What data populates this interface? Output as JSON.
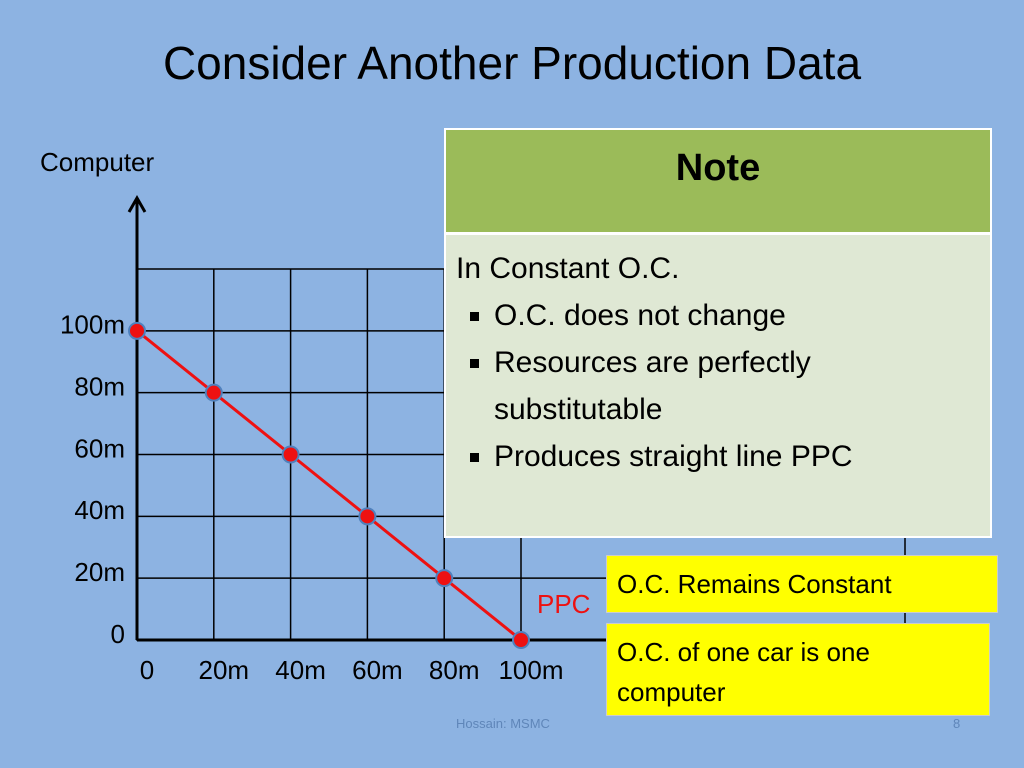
{
  "title": "Consider Another Production Data",
  "chart_data": {
    "type": "line",
    "y_axis_label": "Computer",
    "x": [
      0,
      20,
      40,
      60,
      80,
      100
    ],
    "series": [
      {
        "name": "PPC",
        "color": "#ee1111",
        "values": [
          100,
          80,
          60,
          40,
          20,
          0
        ]
      }
    ],
    "xlim": [
      0,
      200
    ],
    "ylim": [
      0,
      120
    ],
    "xticks": [
      0,
      {
        "value": 20,
        "label": "20m"
      },
      {
        "value": 40,
        "label": "40m"
      },
      {
        "value": 60,
        "label": "60m"
      },
      {
        "value": 80,
        "label": "80m"
      },
      {
        "value": 100,
        "label": "100m"
      }
    ],
    "yticks": [
      0,
      {
        "value": 20,
        "label": "20m"
      },
      {
        "value": 40,
        "label": "40m"
      },
      {
        "value": 60,
        "label": "60m"
      },
      {
        "value": 80,
        "label": "80m"
      },
      {
        "value": 100,
        "label": "100m"
      }
    ],
    "grid": true,
    "marker_color": "#ee1111"
  },
  "note": {
    "title": "Note",
    "intro": "In Constant O.C.",
    "bullets": [
      "O.C. does not change",
      "Resources are perfectly substitutable",
      "Produces straight line PPC"
    ]
  },
  "callouts": [
    "O.C. Remains Constant",
    "O.C. of one car is one computer"
  ],
  "footer": "Hossain: MSMC",
  "page_number": "8"
}
